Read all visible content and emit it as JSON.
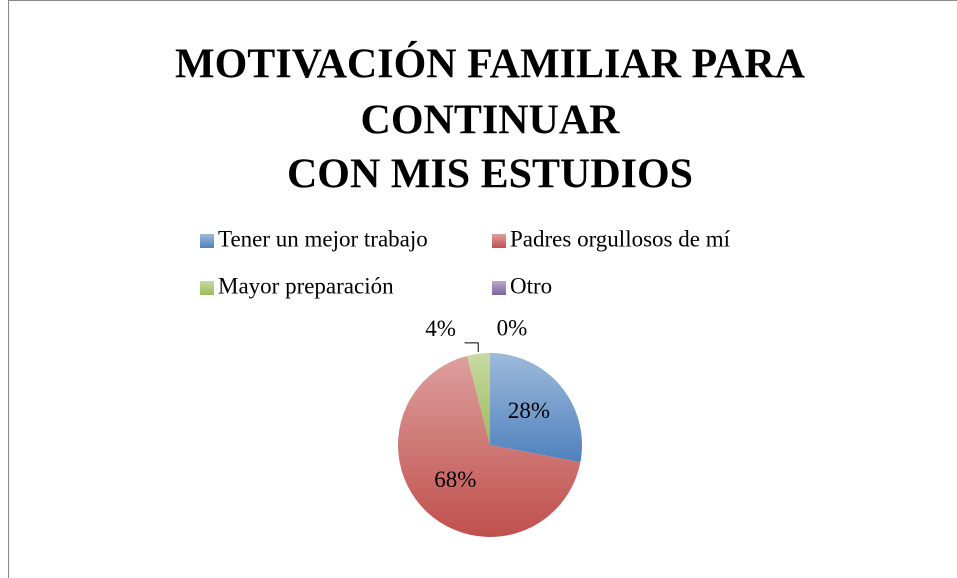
{
  "chart_data": {
    "type": "pie",
    "title": [
      "MOTIVACIÓN FAMILIAR PARA",
      "CONTINUAR",
      "CON MIS ESTUDIOS"
    ],
    "categories": [
      "Tener un mejor trabajo",
      "Padres orgullosos de mí",
      "Mayor preparación",
      "Otro"
    ],
    "values": [
      28,
      68,
      4,
      0
    ],
    "value_labels": [
      "28%",
      "68%",
      "4%",
      "0%"
    ],
    "colors": [
      "#4f81bd",
      "#c0504d",
      "#9bbb59",
      "#8064a2"
    ],
    "legend": "top"
  }
}
